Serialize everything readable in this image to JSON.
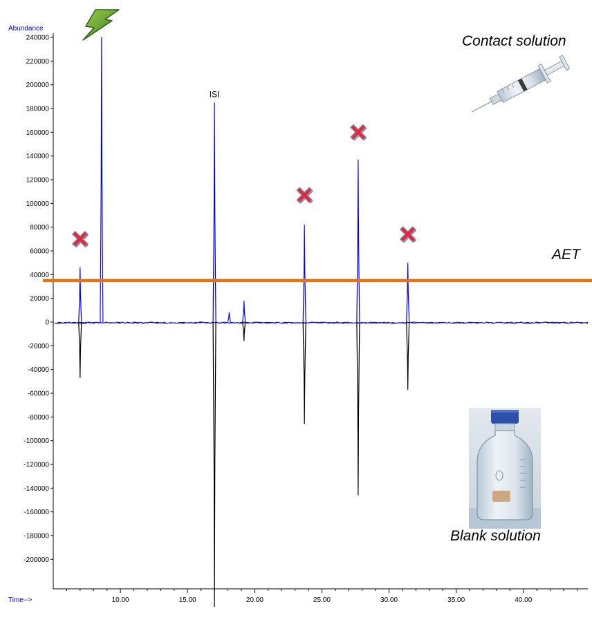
{
  "chart_data": {
    "type": "line",
    "ylabel": "Abundance",
    "xlabel": "Time-->",
    "xlim": [
      5.0,
      44.8
    ],
    "ylim": [
      -240000,
      240000
    ],
    "x_ticks": [
      "10.00",
      "15.00",
      "20.00",
      "25.00",
      "30.00",
      "35.00",
      "40.00"
    ],
    "x_tick_values": [
      10,
      15,
      20,
      25,
      30,
      35,
      40
    ],
    "y_ticks": [
      "240000",
      "220000",
      "200000",
      "180000",
      "160000",
      "140000",
      "120000",
      "100000",
      "80000",
      "60000",
      "40000",
      "20000",
      "0",
      "-20000",
      "-40000",
      "-60000",
      "-80000",
      "-100000",
      "-120000",
      "-140000",
      "-160000",
      "-180000",
      "-200000"
    ],
    "y_tick_values": [
      240000,
      220000,
      200000,
      180000,
      160000,
      140000,
      120000,
      100000,
      80000,
      60000,
      40000,
      20000,
      0,
      -20000,
      -40000,
      -60000,
      -80000,
      -100000,
      -120000,
      -140000,
      -160000,
      -180000,
      -200000
    ],
    "series": [
      {
        "name": "Contact solution",
        "color": "#0000ff",
        "peaks": [
          {
            "x": 7.0,
            "y": 46000
          },
          {
            "x": 8.6,
            "y": 240000
          },
          {
            "x": 17.0,
            "y": 185000
          },
          {
            "x": 18.1,
            "y": 8000
          },
          {
            "x": 19.2,
            "y": 18000
          },
          {
            "x": 23.7,
            "y": 82000
          },
          {
            "x": 27.7,
            "y": 137000
          },
          {
            "x": 31.4,
            "y": 50000
          }
        ]
      },
      {
        "name": "Blank solution",
        "color": "#000000",
        "peaks": [
          {
            "x": 7.0,
            "y": -47000
          },
          {
            "x": 17.0,
            "y": -240000
          },
          {
            "x": 19.2,
            "y": -16000
          },
          {
            "x": 23.7,
            "y": -86000
          },
          {
            "x": 27.7,
            "y": -146000
          },
          {
            "x": 31.4,
            "y": -57000
          }
        ]
      }
    ],
    "threshold": {
      "label": "AET",
      "y": 35000,
      "color": "#e8720c"
    },
    "peak_labels": [
      {
        "text": "ISI",
        "x": 17.0,
        "y": 185000
      }
    ],
    "markers": {
      "excluded_peaks": [
        {
          "x": 7.0,
          "y": 70000
        },
        {
          "x": 23.7,
          "y": 107000
        },
        {
          "x": 27.7,
          "y": 160000
        },
        {
          "x": 31.4,
          "y": 74000
        }
      ],
      "lightning": {
        "x": 8.6,
        "y": 244000
      }
    },
    "annotations": {
      "contact": "Contact solution",
      "blank": "Blank solution",
      "aet": "AET"
    }
  },
  "icons": {
    "excluded": "red-x-icon",
    "lightning": "lightning-bolt-icon",
    "syringe": "syringe-icon",
    "bottle": "lab-bottle-icon"
  }
}
